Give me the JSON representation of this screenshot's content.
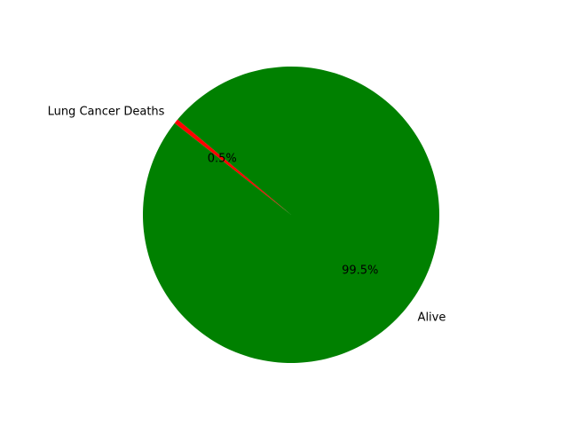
{
  "chart_data": {
    "type": "pie",
    "title": "",
    "slices": [
      {
        "label": "Lung Cancer Deaths",
        "value": 0.5,
        "pct_label": "0.5%",
        "color": "#ff0000"
      },
      {
        "label": "Alive",
        "value": 99.5,
        "pct_label": "99.5%",
        "color": "#008000"
      }
    ],
    "start_angle_deg": 140,
    "direction": "counterclockwise"
  }
}
